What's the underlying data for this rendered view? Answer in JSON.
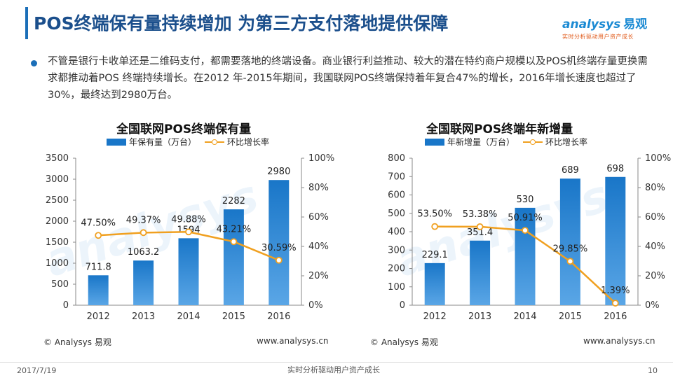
{
  "header": {
    "title": "POS终端保有量持续增加 为第三方支付落地提供保障",
    "logo_text": "analysys",
    "logo_cn": "易观",
    "logo_tagline": "实时分析驱动用户资产成长"
  },
  "bullet": "不管是银行卡收单还是二维码支付，都需要落地的终端设备。商业银行利益推动、较大的潜在特约商户规模以及POS机终端存量更换需求都推动着POS 终端持续增长。在2012 年-2015年期间，我国联网POS终端保持着年复合47%的增长，2016年增长速度也超过了30%，最终达到2980万台。",
  "chart_data": [
    {
      "type": "bar",
      "title": "全国联网POS终端保有量",
      "categories": [
        "2012",
        "2013",
        "2014",
        "2015",
        "2016"
      ],
      "series": [
        {
          "name": "年保有量（万台）",
          "type": "bar",
          "axis": "left",
          "values": [
            711.8,
            1063.2,
            1594,
            2282,
            2980
          ],
          "labels": [
            "711.8",
            "1063.2",
            "1594",
            "2282",
            "2980"
          ]
        },
        {
          "name": "环比增长率",
          "type": "line",
          "axis": "right",
          "values": [
            47.5,
            49.37,
            49.88,
            43.21,
            30.59
          ],
          "labels": [
            "47.50%",
            "49.37%",
            "49.88%",
            "43.21%",
            "30.59%"
          ]
        }
      ],
      "ylim_left": [
        0,
        3500
      ],
      "yticks_left": [
        "0",
        "500",
        "1000",
        "1500",
        "2000",
        "2500",
        "3000",
        "3500"
      ],
      "ylim_right": [
        0,
        100
      ],
      "yticks_right": [
        "0%",
        "20%",
        "40%",
        "60%",
        "80%",
        "100%"
      ],
      "grid": false,
      "legend": "top"
    },
    {
      "type": "bar",
      "title": "全国联网POS终端年新增量",
      "categories": [
        "2012",
        "2013",
        "2014",
        "2015",
        "2016"
      ],
      "series": [
        {
          "name": "年新增量（万台）",
          "type": "bar",
          "axis": "left",
          "values": [
            229.1,
            351.4,
            530,
            689,
            698
          ],
          "labels": [
            "229.1",
            "351.4",
            "530",
            "689",
            "698"
          ]
        },
        {
          "name": "环比增长率",
          "type": "line",
          "axis": "right",
          "values": [
            53.5,
            53.38,
            50.91,
            29.85,
            1.39
          ],
          "labels": [
            "53.50%",
            "53.38%",
            "50.91%",
            "29.85%",
            "1.39%"
          ]
        }
      ],
      "ylim_left": [
        0,
        800
      ],
      "yticks_left": [
        "0",
        "100",
        "200",
        "300",
        "400",
        "500",
        "600",
        "700",
        "800"
      ],
      "ylim_right": [
        0,
        100
      ],
      "yticks_right": [
        "0%",
        "20%",
        "40%",
        "60%",
        "80%",
        "100%"
      ],
      "grid": false,
      "legend": "top"
    }
  ],
  "chart_source": {
    "copyright": "© Analysys 易观",
    "website": "www.analysys.cn"
  },
  "footer": {
    "date": "2017/7/19",
    "tagline": "实时分析驱动用户资产成长",
    "page": "10"
  },
  "colors": {
    "bar": "#1976c8",
    "bar_dark": "#0d5aa8",
    "line": "#f0a020",
    "title": "#1b4f8c",
    "accent": "#1b6fb8"
  }
}
